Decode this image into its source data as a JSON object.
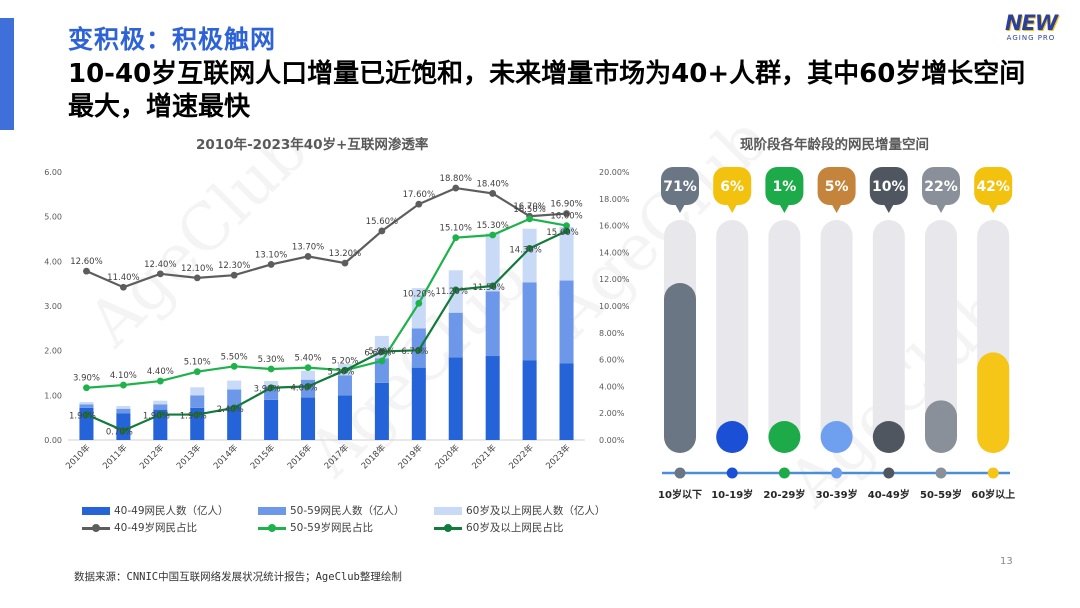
{
  "header": {
    "eyebrow": "变积极：积极触网",
    "title": "10-40岁互联网人口增量已近饱和，未来增量市场为40+人群，其中60岁增长空间最大，增速最快"
  },
  "logo": {
    "main": "NEW",
    "sub": "AGING PRO"
  },
  "watermark": "AgeClub",
  "source": "数据来源：CNNIC中国互联网络发展状况统计报告；AgeClub整理绘制",
  "page_number": "13",
  "colors": {
    "accent": "#3f6fd8",
    "bar_40_49": "#2563d9",
    "bar_50_59": "#6d97e8",
    "bar_60": "#c9daf7",
    "line_40_49": "#5d5d5d",
    "line_50_59": "#1db34a",
    "line_60": "#127a3a"
  },
  "chart_data": [
    {
      "type": "bar",
      "title": "2010年-2023年40岁+互联网渗透率",
      "categories": [
        "2010年",
        "2011年",
        "2012年",
        "2013年",
        "2014年",
        "2015年",
        "2016年",
        "2017年",
        "2018年",
        "2019年",
        "2020年",
        "2021年",
        "2022年",
        "2023年"
      ],
      "y_left": {
        "ticks": [
          "0.00",
          "1.00",
          "2.00",
          "3.00",
          "4.00",
          "5.00",
          "6.00"
        ],
        "lim": [
          0,
          6
        ]
      },
      "y_right": {
        "ticks": [
          "0.00%",
          "2.00%",
          "4.00%",
          "6.00%",
          "8.00%",
          "10.00%",
          "12.00%",
          "14.00%",
          "16.00%",
          "18.00%",
          "20.00%"
        ],
        "lim": [
          0,
          20
        ]
      },
      "bar_series": [
        {
          "name": "40-49网民人数（亿人）",
          "values": [
            0.72,
            0.6,
            0.68,
            0.72,
            0.75,
            0.9,
            0.95,
            1.0,
            1.28,
            1.62,
            1.85,
            1.88,
            1.78,
            1.72
          ]
        },
        {
          "name": "50-59网民人数（亿人）",
          "values": [
            0.08,
            0.1,
            0.12,
            0.28,
            0.38,
            0.3,
            0.4,
            0.45,
            0.55,
            0.88,
            1.0,
            1.45,
            1.75,
            1.85
          ]
        },
        {
          "name": "60岁及以上网民人数（亿人）",
          "values": [
            0.05,
            0.06,
            0.08,
            0.18,
            0.2,
            0.12,
            0.2,
            0.25,
            0.5,
            0.9,
            0.95,
            1.3,
            1.2,
            1.2
          ]
        }
      ],
      "line_series": [
        {
          "name": "40-49岁网民占比",
          "values": [
            12.6,
            11.4,
            12.4,
            12.1,
            12.3,
            13.1,
            13.7,
            13.2,
            15.6,
            17.6,
            18.8,
            18.4,
            16.7,
            16.9
          ],
          "labels": [
            "12.60%",
            "11.40%",
            "12.40%",
            "12.10%",
            "12.30%",
            "13.10%",
            "13.70%",
            "13.20%",
            "15.60%",
            "17.60%",
            "18.80%",
            "18.40%",
            "16.70%",
            "16.90%"
          ]
        },
        {
          "name": "50-59岁网民占比",
          "values": [
            3.9,
            4.1,
            4.4,
            5.1,
            5.5,
            5.3,
            5.4,
            5.2,
            5.9,
            10.2,
            15.1,
            15.3,
            16.5,
            16.0
          ],
          "labels": [
            "3.90%",
            "4.10%",
            "4.40%",
            "5.10%",
            "5.50%",
            "5.30%",
            "5.40%",
            "5.20%",
            "5.90%",
            "10.20%",
            "15.10%",
            "15.30%",
            "16.50%",
            "16.00%"
          ]
        },
        {
          "name": "60岁及以上网民占比",
          "values": [
            1.9,
            0.7,
            1.9,
            1.9,
            2.4,
            3.9,
            4.0,
            5.2,
            6.6,
            6.7,
            11.2,
            11.5,
            14.3,
            15.6
          ],
          "labels": [
            "1.90%",
            "0.70%",
            "1.90%",
            "1.90%",
            "2.40%",
            "3.90%",
            "4.00%",
            "5.20%",
            "6.60%",
            "6.70%",
            "11.20%",
            "11.50%",
            "14.30%",
            "15.60%"
          ]
        }
      ]
    },
    {
      "type": "bar",
      "title": "现阶段各年龄段的网民增量空间",
      "categories": [
        "10岁以下",
        "10-19岁",
        "20-29岁",
        "30-39岁",
        "40-49岁",
        "50-59岁",
        "60岁以上"
      ],
      "values": [
        71,
        6,
        1,
        5,
        10,
        22,
        42
      ],
      "value_labels": [
        "71%",
        "6%",
        "1%",
        "5%",
        "10%",
        "22%",
        "42%"
      ],
      "colors": [
        "#6b7685",
        "#f2c20e",
        "#1dab4a",
        "#c4843c",
        "#4f5660",
        "#8a9099",
        "#f2c20e"
      ],
      "fill_colors": [
        "#6b7685",
        "#1b4fd6",
        "#1dab4a",
        "#6fa0f0",
        "#4f5660",
        "#8a9099",
        "#f5c518"
      ],
      "dot_colors": [
        "#6b7685",
        "#1b4fd6",
        "#1dab4a",
        "#6fa0f0",
        "#4f5660",
        "#8a9099",
        "#f5c518"
      ]
    }
  ]
}
